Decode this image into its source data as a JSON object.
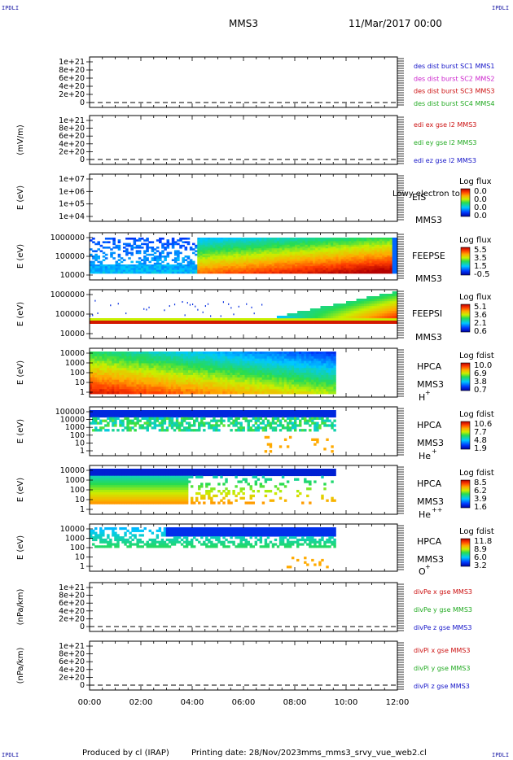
{
  "header": {
    "corner_label": "IPDLI",
    "spacecraft": "MMS3",
    "datetime": "11/Mar/2017 00:00"
  },
  "footer": {
    "produced_by": "Produced by cl (IRAP)",
    "printing_date": "Printing date: 28/Nov/2023",
    "filename": "mms_mms3_srvy_vue_web2.cl"
  },
  "colors": {
    "sc1": "#1414c8",
    "sc2": "#cc22cc",
    "sc3": "#cc1111",
    "sc4": "#22aa22",
    "x": "#cc1111",
    "y": "#22aa22",
    "z": "#1414c8"
  },
  "chart_data": [
    {
      "type": "line",
      "panel": "des dist burst",
      "ylabel": "",
      "ytick_labels": [
        "1e+21",
        "8e+20",
        "6e+20",
        "4e+20",
        "2e+20",
        "0"
      ],
      "series": [
        {
          "name": "des dist burst SC1 MMS1",
          "values": []
        },
        {
          "name": "des dist burst SC2 MMS2",
          "values": []
        },
        {
          "name": "des dist burst SC3 MMS3",
          "values": []
        },
        {
          "name": "des dist burst SC4 MMS4",
          "values": []
        }
      ]
    },
    {
      "type": "line",
      "panel": "edi",
      "ylabel": "(mV/m)",
      "ytick_labels": [
        "1e+21",
        "8e+20",
        "6e+20",
        "4e+20",
        "2e+20",
        "0"
      ],
      "series": [
        {
          "name": "edi ex gse l2 MMS3",
          "values": []
        },
        {
          "name": "edi ey gse l2 MMS3",
          "values": []
        },
        {
          "name": "edi ez gse l2 MMS3",
          "values": []
        }
      ]
    },
    {
      "type": "heatmap",
      "panel": "EIS",
      "ylabel": "E (eV)",
      "ytick_labels": [
        "1e+07",
        "1e+06",
        "1e+05",
        "1e+04"
      ],
      "instrument": "EIS",
      "instrument_sub": "MMS3",
      "overlay_text": "Lowy electron to",
      "colorbar_title": "Log flux",
      "colorbar_ticks": [
        "0.0",
        "0.0",
        "0.0",
        "0.0"
      ]
    },
    {
      "type": "heatmap",
      "panel": "FEEPSE",
      "ylabel": "E (eV)",
      "ytick_labels": [
        "1000000",
        "100000",
        "10000"
      ],
      "instrument": "FEEPSE",
      "instrument_sub": "MMS3",
      "colorbar_title": "Log flux",
      "colorbar_ticks": [
        "5.5",
        "3.5",
        "1.5",
        "-0.5"
      ]
    },
    {
      "type": "heatmap",
      "panel": "FEEPSI",
      "ylabel": "E (eV)",
      "ytick_labels": [
        "1000000",
        "100000",
        "10000"
      ],
      "instrument": "FEEPSI",
      "instrument_sub": "MMS3",
      "colorbar_title": "Log flux",
      "colorbar_ticks": [
        "5.1",
        "3.6",
        "2.1",
        "0.6"
      ]
    },
    {
      "type": "heatmap",
      "panel": "HPCA H+",
      "ylabel": "E (eV)",
      "ytick_labels": [
        "10000",
        "1000",
        "100",
        "10",
        "1"
      ],
      "instrument": "HPCA",
      "instrument_sub": "MMS3",
      "species": "H",
      "charge": "+",
      "colorbar_title": "Log fdist",
      "colorbar_ticks": [
        "10.0",
        "6.9",
        "3.8",
        "0.7"
      ]
    },
    {
      "type": "heatmap",
      "panel": "HPCA He+",
      "ylabel": "E (eV)",
      "ytick_labels": [
        "100000",
        "10000",
        "1000",
        "100",
        "10",
        "1"
      ],
      "instrument": "HPCA",
      "instrument_sub": "MMS3",
      "species": "He",
      "charge": "+",
      "colorbar_title": "Log fdist",
      "colorbar_ticks": [
        "10.6",
        "7.7",
        "4.8",
        "1.9"
      ]
    },
    {
      "type": "heatmap",
      "panel": "HPCA He++",
      "ylabel": "E (eV)",
      "ytick_labels": [
        "10000",
        "1000",
        "100",
        "10",
        "1"
      ],
      "instrument": "HPCA",
      "instrument_sub": "MMS3",
      "species": "He",
      "charge": "++",
      "colorbar_title": "Log fdist",
      "colorbar_ticks": [
        "8.5",
        "6.2",
        "3.9",
        "1.6"
      ]
    },
    {
      "type": "heatmap",
      "panel": "HPCA O+",
      "ylabel": "E (eV)",
      "ytick_labels": [
        "10000",
        "1000",
        "100",
        "10",
        "1"
      ],
      "instrument": "HPCA",
      "instrument_sub": "MMS3",
      "species": "O",
      "charge": "+",
      "colorbar_title": "Log fdist",
      "colorbar_ticks": [
        "11.8",
        "8.9",
        "6.0",
        "3.2"
      ]
    },
    {
      "type": "line",
      "panel": "divPe",
      "ylabel": "(nPa/km)",
      "ytick_labels": [
        "1e+21",
        "8e+20",
        "6e+20",
        "4e+20",
        "2e+20",
        "0"
      ],
      "series": [
        {
          "name": "divPe x gse MMS3",
          "values": []
        },
        {
          "name": "divPe y gse MMS3",
          "values": []
        },
        {
          "name": "divPe z gse MMS3",
          "values": []
        }
      ]
    },
    {
      "type": "line",
      "panel": "divPi",
      "ylabel": "(nPa/km)",
      "ytick_labels": [
        "1e+21",
        "8e+20",
        "6e+20",
        "4e+20",
        "2e+20",
        "0"
      ],
      "series": [
        {
          "name": "divPi x gse MMS3",
          "values": []
        },
        {
          "name": "divPi y gse MMS3",
          "values": []
        },
        {
          "name": "divPi z gse MMS3",
          "values": []
        }
      ]
    }
  ],
  "time_axis": {
    "tick_labels": [
      "00:00",
      "02:00",
      "04:00",
      "06:00",
      "08:00",
      "10:00",
      "12:00"
    ],
    "range_hours": [
      0,
      12
    ],
    "hpca_data_end_hour": 9.6
  }
}
